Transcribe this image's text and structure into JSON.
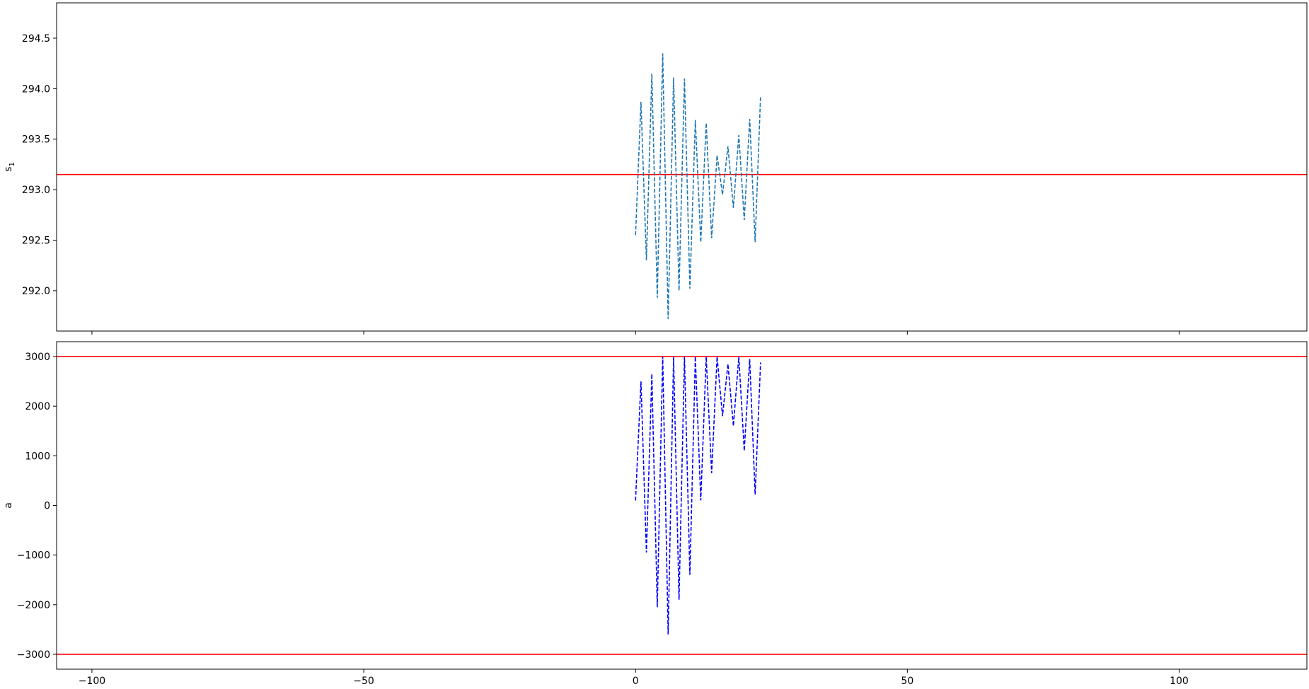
{
  "chart_data": [
    {
      "type": "line",
      "title": "",
      "xlabel": "",
      "ylabel": "s",
      "ylabel_subscript": "1",
      "xlim": [
        -106.5,
        123.5
      ],
      "ylim": [
        291.6,
        294.85
      ],
      "xticks": [
        -100,
        -50,
        0,
        50,
        100
      ],
      "xtick_labels": [
        "",
        "",
        "",
        "",
        ""
      ],
      "yticks": [
        292.0,
        292.5,
        293.0,
        293.5,
        294.0,
        294.5
      ],
      "ytick_labels": [
        "292.0",
        "292.5",
        "293.0",
        "293.5",
        "294.0",
        "294.5"
      ],
      "grid": false,
      "reference_lines": [
        {
          "axis": "y",
          "value": 293.15,
          "color": "#ff0000"
        }
      ],
      "series": [
        {
          "color": "#1f77b4",
          "style": "dashed",
          "x": [
            0,
            1,
            2,
            3,
            4,
            5,
            6,
            7,
            8,
            9,
            10,
            11,
            12,
            13,
            14,
            15,
            16,
            17,
            18,
            19,
            20,
            21,
            22,
            23
          ],
          "y": [
            292.55,
            293.87,
            292.3,
            294.15,
            291.93,
            294.35,
            291.72,
            294.11,
            292.0,
            294.1,
            292.02,
            293.69,
            292.48,
            293.66,
            292.52,
            293.34,
            292.95,
            293.43,
            292.82,
            293.54,
            292.7,
            293.7,
            292.48,
            293.93
          ]
        }
      ]
    },
    {
      "type": "line",
      "title": "",
      "xlabel": "",
      "ylabel": "a",
      "xlim": [
        -106.5,
        123.5
      ],
      "ylim": [
        -3300,
        3300
      ],
      "xticks": [
        -100,
        -50,
        0,
        50,
        100
      ],
      "xtick_labels": [
        "−100",
        "−50",
        "0",
        "50",
        "100"
      ],
      "yticks": [
        -3000,
        -2000,
        -1000,
        0,
        1000,
        2000,
        3000
      ],
      "ytick_labels": [
        "−3000",
        "−2000",
        "−1000",
        "0",
        "1000",
        "2000",
        "3000"
      ],
      "grid": false,
      "reference_lines": [
        {
          "axis": "y",
          "value": 3000,
          "color": "#ff0000"
        },
        {
          "axis": "y",
          "value": -3000,
          "color": "#ff0000"
        }
      ],
      "series": [
        {
          "color": "#0000ff",
          "style": "dashed",
          "x": [
            0,
            1,
            2,
            3,
            4,
            5,
            6,
            7,
            8,
            9,
            10,
            11,
            12,
            13,
            14,
            15,
            16,
            17,
            18,
            19,
            20,
            21,
            22,
            23
          ],
          "y": [
            100,
            2500,
            -950,
            2650,
            -2050,
            3000,
            -2600,
            3000,
            -1900,
            3000,
            -1400,
            3000,
            100,
            3000,
            650,
            3000,
            1800,
            2850,
            1600,
            3000,
            1100,
            2950,
            220,
            2880
          ]
        }
      ]
    }
  ]
}
